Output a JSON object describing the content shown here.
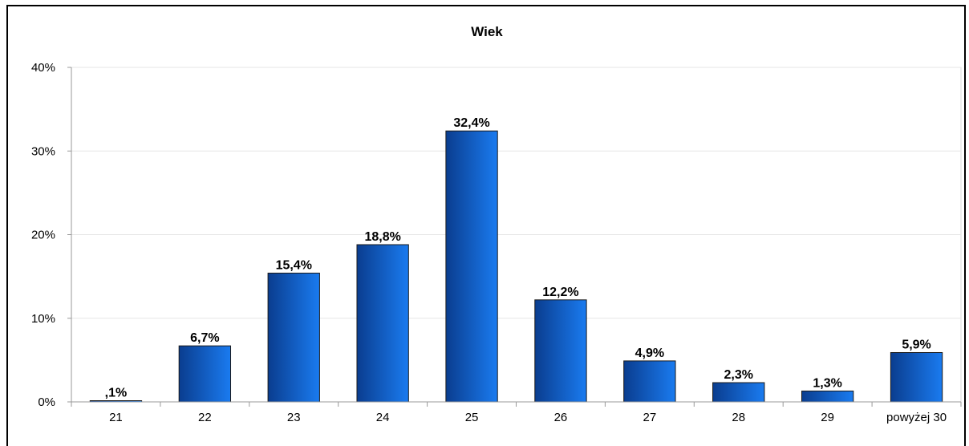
{
  "chart_data": {
    "type": "bar",
    "title": "Wiek",
    "xlabel": "",
    "ylabel": "",
    "categories": [
      "21",
      "22",
      "23",
      "24",
      "25",
      "26",
      "27",
      "28",
      "29",
      "powyżej 30"
    ],
    "values": [
      0.1,
      6.7,
      15.4,
      18.8,
      32.4,
      12.2,
      4.9,
      2.3,
      1.3,
      5.9
    ],
    "data_labels": [
      ",1%",
      "6,7%",
      "15,4%",
      "18,8%",
      "32,4%",
      "12,2%",
      "4,9%",
      "2,3%",
      "1,3%",
      "5,9%"
    ],
    "y_ticks": [
      "0%",
      "10%",
      "20%",
      "30%",
      "40%"
    ],
    "y_tick_values": [
      0,
      10,
      20,
      30,
      40
    ],
    "ylim": [
      0,
      40
    ],
    "grid": true,
    "legend": "none",
    "colors": {
      "bar_dark": "#0a3d8f",
      "bar_light": "#1a7bf0",
      "grid": "#e6e6e6",
      "axis": "#999999"
    }
  }
}
